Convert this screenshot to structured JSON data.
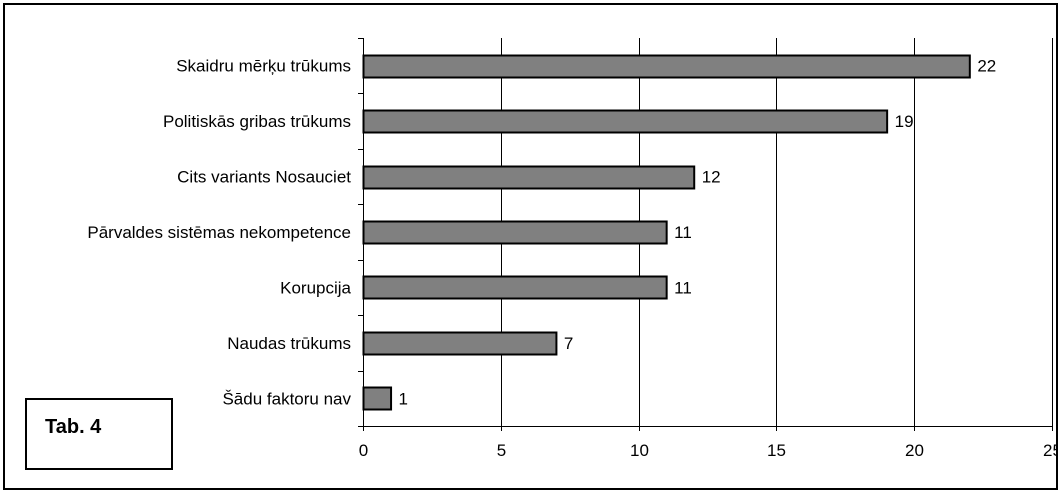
{
  "chart_data": {
    "type": "bar",
    "orientation": "horizontal",
    "categories": [
      "Skaidru mērķu trūkums",
      "Politiskās gribas trūkums",
      "Cits variants Nosauciet",
      "Pārvaldes sistēmas nekompetence",
      "Korupcija",
      "Naudas trūkums",
      "Šādu faktoru nav"
    ],
    "values": [
      22,
      19,
      12,
      11,
      11,
      7,
      1
    ],
    "data_labels": [
      "22",
      "19",
      "12",
      "11",
      "11",
      "7",
      "1"
    ],
    "xlim": [
      0,
      25
    ],
    "xticks": [
      "0",
      "5",
      "10",
      "15",
      "20",
      "25"
    ],
    "grid": "vertical",
    "bar_color": "#808080",
    "title": "",
    "xlabel": "",
    "ylabel": ""
  },
  "table_label": "Tab. 4"
}
